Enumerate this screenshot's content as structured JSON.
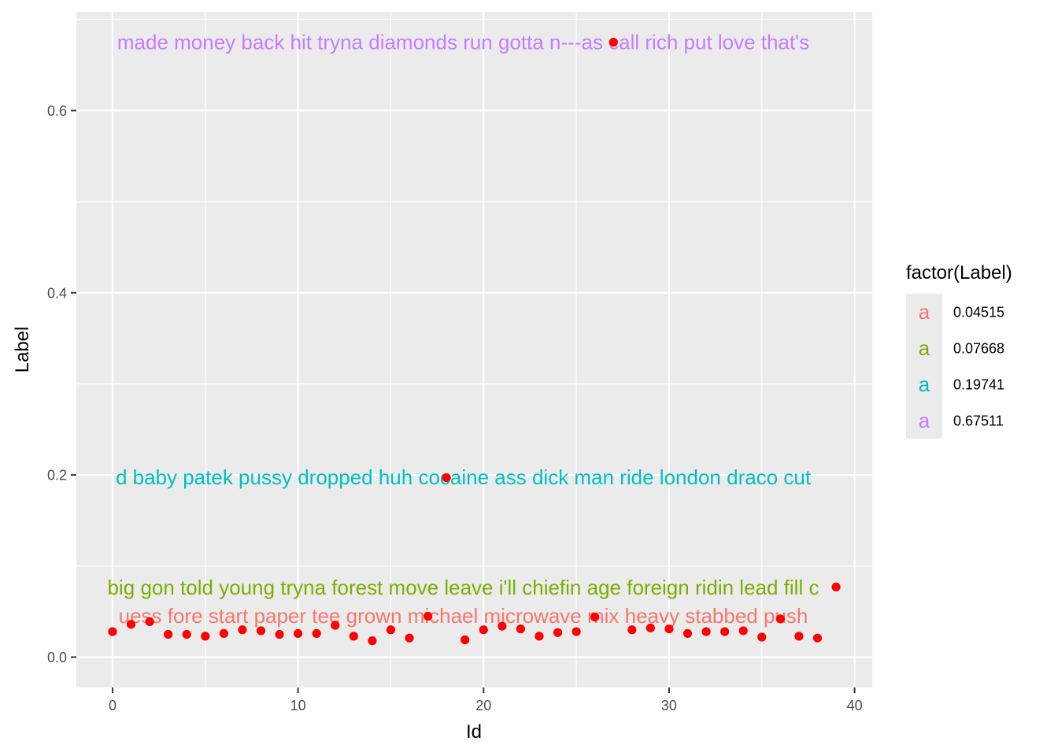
{
  "chart_data": {
    "type": "scatter",
    "xlabel": "Id",
    "ylabel": "Label",
    "xlim": [
      -1.95,
      40.95
    ],
    "ylim": [
      -0.0333,
      0.7084
    ],
    "x_ticks": [
      0,
      10,
      20,
      30,
      40
    ],
    "x_tick_labels": [
      "0",
      "10",
      "20",
      "30",
      "40"
    ],
    "y_ticks": [
      0.0,
      0.2,
      0.4,
      0.6
    ],
    "y_tick_labels": [
      "0.0",
      "0.2",
      "0.4",
      "0.6"
    ],
    "grid": true,
    "point_color": "#ff0000",
    "points": [
      {
        "x": 0,
        "y": 0.028
      },
      {
        "x": 1,
        "y": 0.036
      },
      {
        "x": 2,
        "y": 0.039
      },
      {
        "x": 3,
        "y": 0.025
      },
      {
        "x": 4,
        "y": 0.025
      },
      {
        "x": 5,
        "y": 0.023
      },
      {
        "x": 6,
        "y": 0.026
      },
      {
        "x": 7,
        "y": 0.03
      },
      {
        "x": 8,
        "y": 0.029
      },
      {
        "x": 9,
        "y": 0.025
      },
      {
        "x": 10,
        "y": 0.026
      },
      {
        "x": 11,
        "y": 0.026
      },
      {
        "x": 12,
        "y": 0.035
      },
      {
        "x": 13,
        "y": 0.023
      },
      {
        "x": 14,
        "y": 0.018
      },
      {
        "x": 15,
        "y": 0.03
      },
      {
        "x": 16,
        "y": 0.021
      },
      {
        "x": 17,
        "y": 0.045
      },
      {
        "x": 18,
        "y": 0.197
      },
      {
        "x": 19,
        "y": 0.019
      },
      {
        "x": 20,
        "y": 0.03
      },
      {
        "x": 21,
        "y": 0.034
      },
      {
        "x": 22,
        "y": 0.031
      },
      {
        "x": 23,
        "y": 0.023
      },
      {
        "x": 24,
        "y": 0.027
      },
      {
        "x": 25,
        "y": 0.028
      },
      {
        "x": 26,
        "y": 0.044
      },
      {
        "x": 27,
        "y": 0.675
      },
      {
        "x": 28,
        "y": 0.03
      },
      {
        "x": 29,
        "y": 0.032
      },
      {
        "x": 30,
        "y": 0.031
      },
      {
        "x": 31,
        "y": 0.026
      },
      {
        "x": 32,
        "y": 0.028
      },
      {
        "x": 33,
        "y": 0.028
      },
      {
        "x": 34,
        "y": 0.029
      },
      {
        "x": 35,
        "y": 0.022
      },
      {
        "x": 36,
        "y": 0.042
      },
      {
        "x": 37,
        "y": 0.023
      },
      {
        "x": 38,
        "y": 0.021
      },
      {
        "x": 39,
        "y": 0.077
      }
    ],
    "text_labels": [
      {
        "y": 0.04515,
        "color": "#f8766d",
        "text": "uess fore start paper tee grown michael microwave mix heavy stabbed push"
      },
      {
        "y": 0.07668,
        "color": "#7cae00",
        "text": "big gon told young tryna forest move leave i'll chiefin age foreign ridin lead fill c"
      },
      {
        "y": 0.19741,
        "color": "#00bfc4",
        "text": "d baby patek pussy dropped huh cocaine ass dick man ride london draco cut"
      },
      {
        "y": 0.67511,
        "color": "#c77cff",
        "text": "made money back hit tryna diamonds run gotta n---as call rich put love that's"
      }
    ],
    "legend": {
      "title": "factor(Label)",
      "placement": "right",
      "key_glyph": "a",
      "entries": [
        {
          "label": "0.04515",
          "color": "#f8766d"
        },
        {
          "label": "0.07668",
          "color": "#7cae00"
        },
        {
          "label": "0.19741",
          "color": "#00bfc4"
        },
        {
          "label": "0.67511",
          "color": "#c77cff"
        }
      ]
    }
  }
}
